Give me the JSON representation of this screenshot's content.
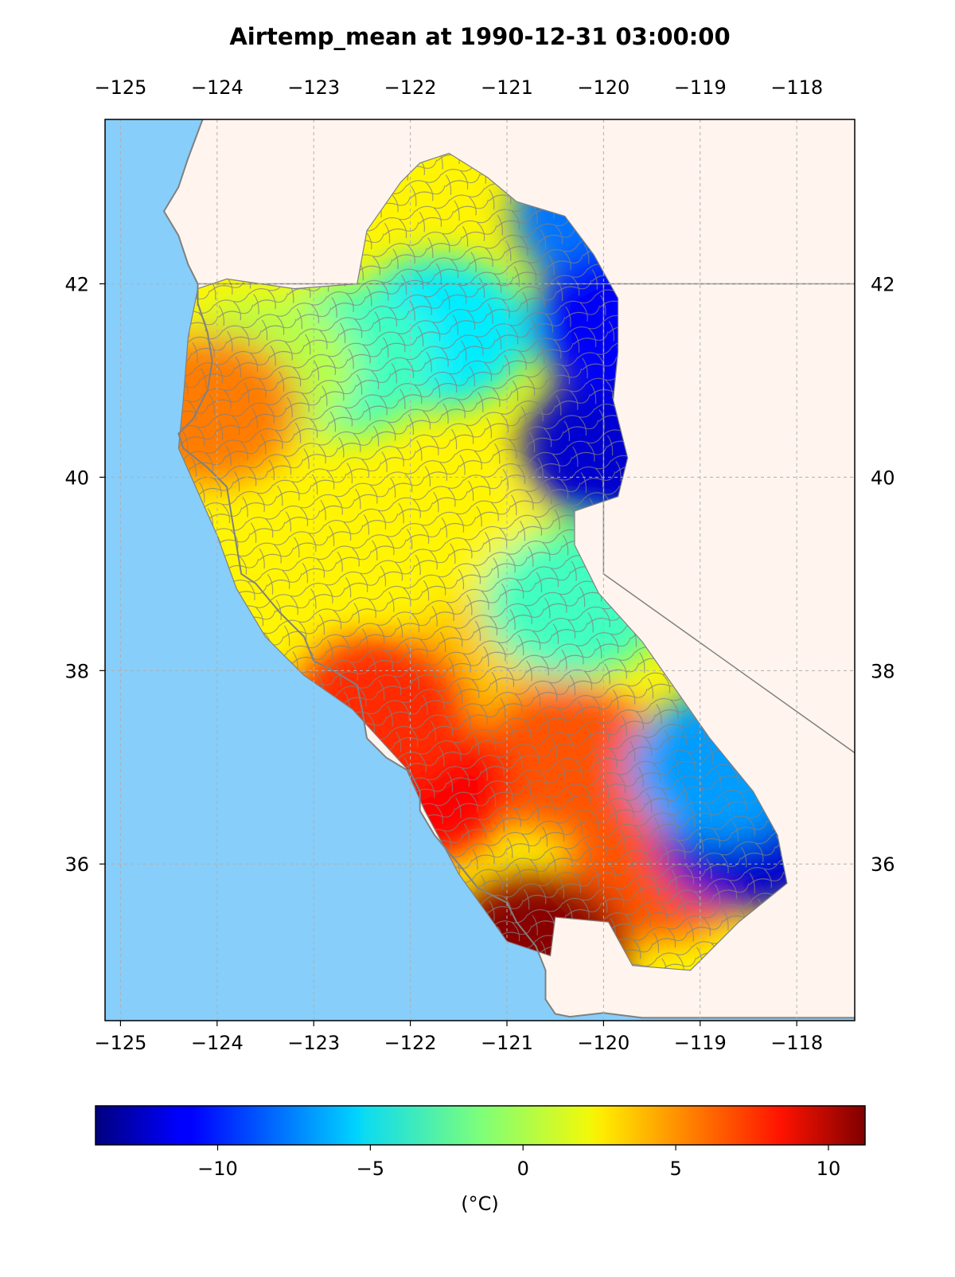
{
  "title": "Airtemp_mean at 1990-12-31 03:00:00",
  "colors": {
    "ocean": "#87CEFA",
    "land": "#FFF5EE",
    "coastline": "#808080",
    "border": "#808080",
    "grid": "#b0b0b0",
    "cell_edge": "#808080"
  },
  "chart_data": {
    "type": "heatmap",
    "projection": "PlateCarree",
    "title": "Airtemp_mean at 1990-12-31 03:00:00",
    "variable": "Airtemp_mean",
    "timestamp": "1990-12-31 03:00:00",
    "xlim": [
      -125.16,
      -117.4
    ],
    "ylim": [
      34.38,
      43.7
    ],
    "lon_ticks": [
      -125,
      -124,
      -123,
      -122,
      -121,
      -120,
      -119,
      -118
    ],
    "lat_ticks": [
      36,
      38,
      40,
      42
    ],
    "lon_tick_labels": [
      "−125",
      "−124",
      "−123",
      "−122",
      "−121",
      "−120",
      "−119",
      "−118"
    ],
    "lat_tick_labels": [
      "36",
      "38",
      "40",
      "42"
    ],
    "grid": true,
    "colormap": "jet",
    "colorbar": {
      "orientation": "horizontal",
      "placement": "bottom",
      "vmin": -14,
      "vmax": 11.2,
      "ticks": [
        -10,
        -5,
        0,
        5,
        10
      ],
      "tick_labels": [
        "−10",
        "−5",
        "0",
        "5",
        "10"
      ],
      "label": "(°C)"
    },
    "regions_approx_temperature_c": [
      {
        "lon": -120.0,
        "lat": 42.7,
        "value": -8
      },
      {
        "lon": -119.9,
        "lat": 40.3,
        "value": -12
      },
      {
        "lon": -119.8,
        "lat": 41.6,
        "value": -11
      },
      {
        "lon": -121.7,
        "lat": 41.5,
        "value": -5
      },
      {
        "lon": -122.7,
        "lat": 41.2,
        "value": -3
      },
      {
        "lon": -123.5,
        "lat": 41.1,
        "value": 0
      },
      {
        "lon": -124.1,
        "lat": 40.7,
        "value": 5
      },
      {
        "lon": -121.6,
        "lat": 39.2,
        "value": 2
      },
      {
        "lon": -121.2,
        "lat": 38.0,
        "value": 3
      },
      {
        "lon": -120.4,
        "lat": 37.1,
        "value": 6
      },
      {
        "lon": -119.4,
        "lat": 36.0,
        "value": 6
      },
      {
        "lon": -118.5,
        "lat": 36.3,
        "value": -12
      },
      {
        "lon": -118.8,
        "lat": 37.0,
        "value": -7
      },
      {
        "lon": -120.3,
        "lat": 38.7,
        "value": -3
      },
      {
        "lon": -121.9,
        "lat": 36.8,
        "value": 8
      },
      {
        "lon": -120.7,
        "lat": 35.1,
        "value": 11
      },
      {
        "lon": -122.3,
        "lat": 37.6,
        "value": 7
      }
    ]
  }
}
